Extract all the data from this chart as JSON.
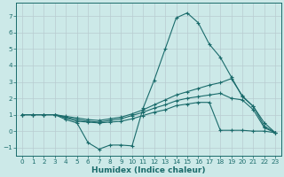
{
  "xlabel": "Humidex (Indice chaleur)",
  "background_color": "#cce9e8",
  "grid_color": "#b8ccd0",
  "line_color": "#1a6b6b",
  "xlim": [
    -0.5,
    23.5
  ],
  "ylim": [
    -1.5,
    7.8
  ],
  "xticks": [
    0,
    1,
    2,
    3,
    4,
    5,
    6,
    7,
    8,
    9,
    10,
    11,
    12,
    13,
    14,
    15,
    16,
    17,
    18,
    19,
    20,
    21,
    22,
    23
  ],
  "yticks": [
    -1,
    0,
    1,
    2,
    3,
    4,
    5,
    6,
    7
  ],
  "x": [
    0,
    1,
    2,
    3,
    4,
    5,
    6,
    7,
    8,
    9,
    10,
    11,
    12,
    13,
    14,
    15,
    16,
    17,
    18,
    19,
    20,
    21,
    22,
    23
  ],
  "line_spike": [
    1.0,
    1.0,
    1.0,
    1.0,
    0.7,
    0.5,
    -0.7,
    -1.1,
    -0.85,
    -0.85,
    -0.9,
    1.4,
    3.1,
    5.0,
    6.9,
    7.2,
    6.6,
    5.3,
    4.5,
    3.3,
    2.1,
    1.5,
    0.5,
    -0.1
  ],
  "line_upper": [
    1.0,
    1.0,
    1.0,
    1.0,
    0.9,
    0.8,
    0.7,
    0.65,
    0.75,
    0.85,
    1.05,
    1.3,
    1.6,
    1.9,
    2.2,
    2.4,
    2.6,
    2.8,
    2.95,
    3.2,
    2.15,
    1.5,
    0.3,
    -0.1
  ],
  "line_mid": [
    1.0,
    1.0,
    1.0,
    1.0,
    0.85,
    0.7,
    0.6,
    0.55,
    0.65,
    0.75,
    0.95,
    1.15,
    1.4,
    1.6,
    1.85,
    2.0,
    2.1,
    2.2,
    2.3,
    2.0,
    1.9,
    1.3,
    0.2,
    -0.1
  ],
  "line_flat": [
    1.0,
    1.0,
    1.0,
    1.0,
    0.8,
    0.6,
    0.55,
    0.5,
    0.55,
    0.6,
    0.75,
    0.95,
    1.15,
    1.3,
    1.55,
    1.65,
    1.75,
    1.75,
    0.05,
    0.05,
    0.05,
    0.0,
    0.0,
    -0.1
  ]
}
